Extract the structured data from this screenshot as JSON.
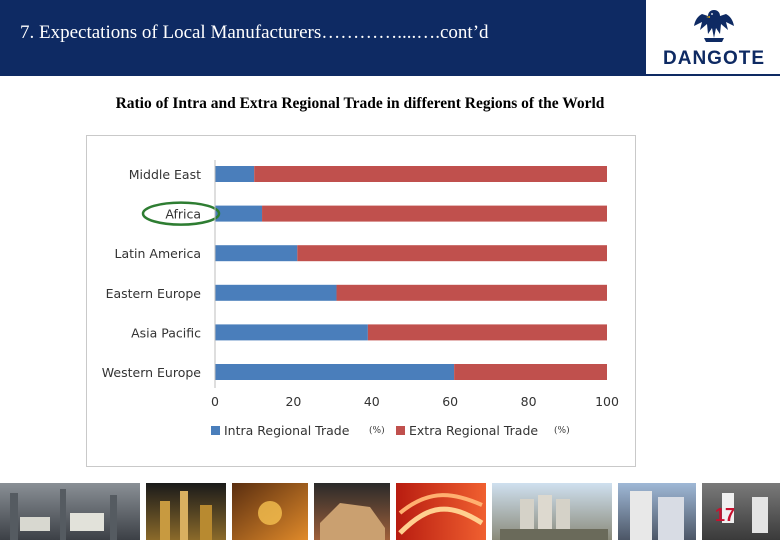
{
  "header": {
    "title": "7. Expectations of Local Manufacturers…………....….cont’d"
  },
  "logo": {
    "text": "DANGOTE",
    "brand_color": "#0e2a63"
  },
  "subtitle": "Ratio of Intra and Extra Regional Trade in different Regions of the World",
  "chart_data": {
    "type": "bar",
    "orientation": "horizontal",
    "stacked": true,
    "categories": [
      "Middle East",
      "Africa",
      "Latin America",
      "Eastern Europe",
      "Asia Pacific",
      "Western Europe"
    ],
    "series": [
      {
        "name": "Intra Regional Trade",
        "unit_note": "(%)",
        "color": "#4a7ebb",
        "values": [
          10,
          12,
          21,
          31,
          39,
          61
        ]
      },
      {
        "name": "Extra Regional Trade",
        "unit_note": "(%)",
        "color": "#c0504d",
        "values": [
          90,
          88,
          79,
          69,
          61,
          39
        ]
      }
    ],
    "x_ticks": [
      "0",
      "20",
      "40",
      "60",
      "80",
      "100"
    ],
    "xlim": [
      0,
      100
    ],
    "legend_position": "bottom",
    "highlighted_category": "Africa",
    "highlight_color": "#2e7d32"
  },
  "page_number": "17"
}
